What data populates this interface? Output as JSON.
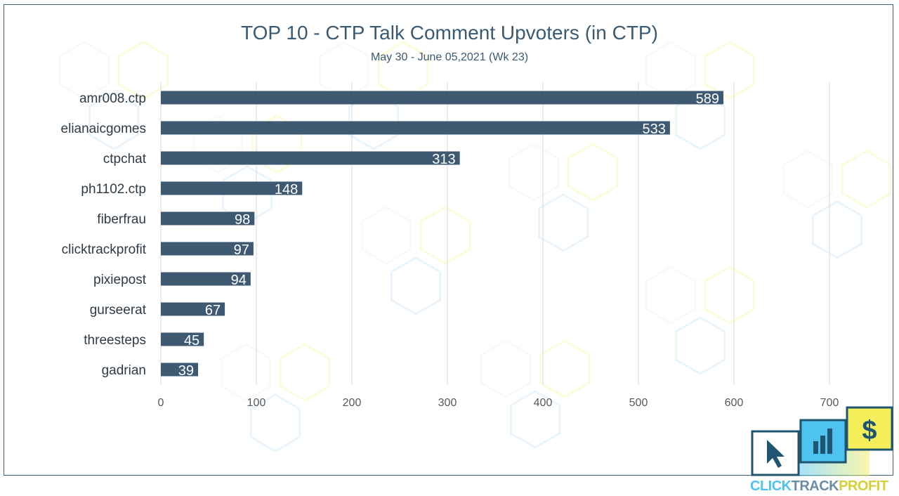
{
  "chart_data": {
    "type": "bar",
    "orientation": "horizontal",
    "title": "TOP 10 - CTP Talk Comment Upvoters (in CTP)",
    "subtitle": "May 30 - June 05,2021 (Wk 23)",
    "categories": [
      "amr008.ctp",
      "elianaicgomes",
      "ctpchat",
      "ph1102.ctp",
      "fiberfrau",
      "clicktrackprofit",
      "pixiepost",
      "gurseerat",
      "threesteps",
      "gadrian"
    ],
    "values": [
      589,
      533,
      313,
      148,
      98,
      97,
      94,
      67,
      45,
      39
    ],
    "xlim": [
      0,
      700
    ],
    "xticks": [
      0,
      100,
      200,
      300,
      400,
      500,
      600,
      700
    ],
    "grid": "vertical",
    "bar_color": "#3e5a73",
    "label_color": "#ffffff"
  },
  "logo": {
    "text_parts": [
      "CLICK",
      "TRACK",
      "PROFIT"
    ],
    "icons": [
      "cursor-icon",
      "bar-chart-icon",
      "dollar-icon"
    ]
  }
}
